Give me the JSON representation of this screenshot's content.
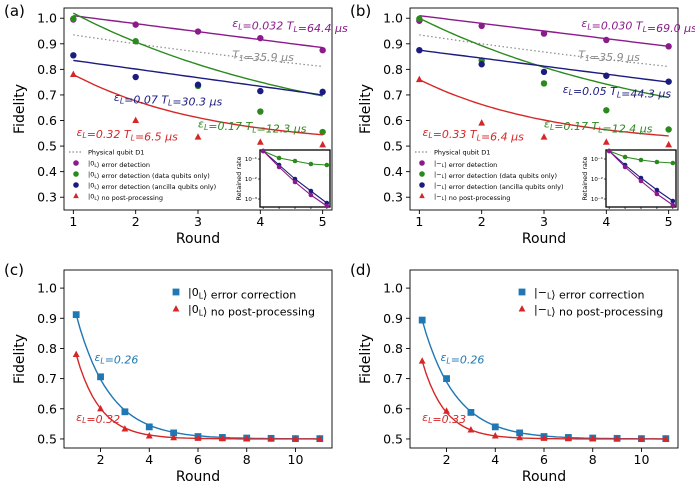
{
  "colors": {
    "purple": "#8b1a8b",
    "green": "#2a8a1e",
    "navy": "#1c1c80",
    "red": "#d62728",
    "blue": "#1f77b4",
    "gray": "#8a8a8a"
  },
  "chart_data": [
    {
      "id": "a",
      "type": "line",
      "panel_label": "(a)",
      "xlabel": "Round",
      "ylabel": "Fidelity",
      "xlim": [
        0.85,
        5.15
      ],
      "ylim": [
        0.25,
        1.04
      ],
      "xticks": [
        1,
        2,
        3,
        4,
        5
      ],
      "yticks": [
        0.3,
        0.4,
        0.5,
        0.6,
        0.7,
        0.8,
        0.9,
        1.0
      ],
      "legend": {
        "placement": "bottom-left",
        "entries": [
          {
            "label": "Physical qubit D1",
            "key": "phys"
          },
          {
            "label": "|0L⟩ error detection",
            "key": "det"
          },
          {
            "label": "|0L⟩ error detection (data qubits only)",
            "key": "data"
          },
          {
            "label": "|0L⟩ error detection (ancilla qubits only)",
            "key": "anc"
          },
          {
            "label": "|0L⟩ no post-processing",
            "key": "nop"
          }
        ]
      },
      "series": [
        {
          "key": "phys",
          "color": "gray",
          "style": "dotted",
          "marker": "none",
          "x": [
            1,
            5
          ],
          "fit_type": "exp",
          "fit": {
            "A": 0.5,
            "T": 35.9,
            "start": 0.935
          }
        },
        {
          "key": "det",
          "color": "purple",
          "marker": "circle",
          "x": [
            1,
            2,
            3,
            4,
            5
          ],
          "y": [
            0.995,
            0.975,
            0.948,
            0.922,
            0.875
          ],
          "fit_type": "linear",
          "fit": [
            1.01,
            0.885
          ]
        },
        {
          "key": "data",
          "color": "green",
          "marker": "circle",
          "x": [
            1,
            2,
            3,
            4,
            5
          ],
          "y": [
            0.998,
            0.91,
            0.735,
            0.635,
            0.555
          ],
          "fit_type": "exp",
          "fit": {
            "A": 0.5,
            "T": 12.3,
            "start": 1.02
          }
        },
        {
          "key": "anc",
          "color": "navy",
          "marker": "circle",
          "x": [
            1,
            2,
            3,
            4,
            5
          ],
          "y": [
            0.855,
            0.77,
            0.74,
            0.715,
            0.712
          ],
          "fit_type": "linear",
          "fit": [
            0.835,
            0.7
          ]
        },
        {
          "key": "nop",
          "color": "red",
          "marker": "triangle",
          "x": [
            1,
            2,
            3,
            4,
            5
          ],
          "y": [
            0.78,
            0.6,
            0.535,
            0.515,
            0.505
          ],
          "fit_type": "exp",
          "fit": {
            "A": 0.5,
            "T": 6.5,
            "start": 0.78
          }
        }
      ],
      "annotations": [
        {
          "text": "εL=0.032 TL=64.4 μs",
          "color": "purple",
          "x": 3.55,
          "y": 0.965
        },
        {
          "text": "T1=35.9 μs",
          "color": "gray",
          "x": 3.55,
          "y": 0.842
        },
        {
          "text": "εL=0.07 TL=30.3 μs",
          "color": "navy",
          "x": 1.65,
          "y": 0.676
        },
        {
          "text": "εL=0.17 TL=12.3 μs",
          "color": "green",
          "x": 3.0,
          "y": 0.572
        },
        {
          "text": "εL=0.32 TL=6.5 μs",
          "color": "red",
          "x": 1.05,
          "y": 0.54
        }
      ],
      "inset": {
        "ylabel": "Retained rate",
        "ytick_labels": [
          "10⁻¹",
          "10⁻²",
          "10⁻³"
        ],
        "ytick_values": [
          -1,
          -2,
          -3
        ],
        "ylim": [
          -3.4,
          -0.55
        ],
        "xlim": [
          0.8,
          5.2
        ],
        "series": [
          {
            "key": "data",
            "color": "green",
            "x": [
              1,
              2,
              3,
              4,
              5
            ],
            "y": [
              -0.6,
              -0.95,
              -1.1,
              -1.25,
              -1.3
            ]
          },
          {
            "key": "anc",
            "color": "navy",
            "x": [
              1,
              2,
              3,
              4,
              5
            ],
            "y": [
              -0.6,
              -1.3,
              -2.0,
              -2.6,
              -3.2
            ]
          },
          {
            "key": "det",
            "color": "purple",
            "x": [
              1,
              2,
              3,
              4,
              5
            ],
            "y": [
              -0.6,
              -1.4,
              -2.15,
              -2.8,
              -3.35
            ]
          }
        ]
      }
    },
    {
      "id": "b",
      "type": "line",
      "panel_label": "(b)",
      "xlabel": "Round",
      "ylabel": "Fidelity",
      "xlim": [
        0.85,
        5.15
      ],
      "ylim": [
        0.25,
        1.04
      ],
      "xticks": [
        1,
        2,
        3,
        4,
        5
      ],
      "yticks": [
        0.3,
        0.4,
        0.5,
        0.6,
        0.7,
        0.8,
        0.9,
        1.0
      ],
      "legend": {
        "placement": "bottom-left",
        "entries": [
          {
            "label": "Physical qubit D1",
            "key": "phys"
          },
          {
            "label": "|−L⟩ error detection",
            "key": "det"
          },
          {
            "label": "|−L⟩ error detection (data qubits only)",
            "key": "data"
          },
          {
            "label": "|−L⟩ error detection (ancilla qubits only)",
            "key": "anc"
          },
          {
            "label": "|−L⟩ no post-processing",
            "key": "nop"
          }
        ]
      },
      "series": [
        {
          "key": "phys",
          "color": "gray",
          "style": "dotted",
          "marker": "none",
          "x": [
            1,
            5
          ],
          "fit_type": "exp",
          "fit": {
            "A": 0.5,
            "T": 35.9,
            "start": 0.935
          }
        },
        {
          "key": "det",
          "color": "purple",
          "marker": "circle",
          "x": [
            1,
            2,
            3,
            4,
            5
          ],
          "y": [
            0.99,
            0.97,
            0.94,
            0.915,
            0.89
          ],
          "fit_type": "linear",
          "fit": [
            1.01,
            0.89
          ]
        },
        {
          "key": "data",
          "color": "green",
          "marker": "circle",
          "x": [
            1,
            2,
            3,
            4,
            5
          ],
          "y": [
            0.998,
            0.835,
            0.745,
            0.64,
            0.565
          ],
          "fit_type": "exp",
          "fit": {
            "A": 0.5,
            "T": 12.4,
            "start": 1.0
          }
        },
        {
          "key": "anc",
          "color": "navy",
          "marker": "circle",
          "x": [
            1,
            2,
            3,
            4,
            5
          ],
          "y": [
            0.875,
            0.82,
            0.79,
            0.775,
            0.752
          ],
          "fit_type": "linear",
          "fit": [
            0.875,
            0.75
          ]
        },
        {
          "key": "nop",
          "color": "red",
          "marker": "triangle",
          "x": [
            1,
            2,
            3,
            4,
            5
          ],
          "y": [
            0.76,
            0.59,
            0.535,
            0.515,
            0.505
          ],
          "fit_type": "exp",
          "fit": {
            "A": 0.5,
            "T": 6.4,
            "start": 0.76
          }
        }
      ],
      "annotations": [
        {
          "text": "εL=0.030 TL=69.0 μs",
          "color": "purple",
          "x": 3.6,
          "y": 0.965
        },
        {
          "text": "T1=35.9 μs",
          "color": "gray",
          "x": 3.55,
          "y": 0.842
        },
        {
          "text": "εL=0.05 TL=44.3 μs",
          "color": "navy",
          "x": 3.3,
          "y": 0.708
        },
        {
          "text": "εL=0.17 TL=12.4 μs",
          "color": "green",
          "x": 3.0,
          "y": 0.572
        },
        {
          "text": "εL=0.33 TL=6.4 μs",
          "color": "red",
          "x": 1.05,
          "y": 0.54
        }
      ],
      "inset": {
        "ylabel": "Retained rate",
        "ytick_labels": [
          "10⁻¹",
          "10⁻²",
          "10⁻³"
        ],
        "ytick_values": [
          -1,
          -2,
          -3
        ],
        "ylim": [
          -3.4,
          -0.55
        ],
        "xlim": [
          0.8,
          5.2
        ],
        "series": [
          {
            "key": "data",
            "color": "green",
            "x": [
              1,
              2,
              3,
              4,
              5
            ],
            "y": [
              -0.6,
              -0.9,
              -1.05,
              -1.15,
              -1.2
            ]
          },
          {
            "key": "anc",
            "color": "navy",
            "x": [
              1,
              2,
              3,
              4,
              5
            ],
            "y": [
              -0.6,
              -1.3,
              -1.95,
              -2.55,
              -3.1
            ]
          },
          {
            "key": "det",
            "color": "purple",
            "x": [
              1,
              2,
              3,
              4,
              5
            ],
            "y": [
              -0.6,
              -1.4,
              -2.1,
              -2.75,
              -3.3
            ]
          }
        ]
      }
    },
    {
      "id": "c",
      "type": "line",
      "panel_label": "(c)",
      "xlabel": "Round",
      "ylabel": "Fidelity",
      "xlim": [
        0.5,
        11.5
      ],
      "ylim": [
        0.47,
        1.06
      ],
      "xticks": [
        2,
        4,
        6,
        8,
        10
      ],
      "yticks": [
        0.5,
        0.6,
        0.7,
        0.8,
        0.9,
        1.0
      ],
      "legend": {
        "placement": "top-right",
        "entries": [
          {
            "label": "|0L⟩ error correction",
            "key": "corr"
          },
          {
            "label": "|0L⟩ no post-processing",
            "key": "nop"
          }
        ]
      },
      "series": [
        {
          "key": "corr",
          "color": "blue",
          "marker": "square",
          "x": [
            1,
            2,
            3,
            4,
            5,
            6,
            7,
            8,
            9,
            10,
            11
          ],
          "y": [
            0.912,
            0.706,
            0.59,
            0.54,
            0.52,
            0.508,
            0.505,
            0.503,
            0.502,
            0.501,
            0.501
          ],
          "fit_type": "exp",
          "fit": {
            "A": 0.5,
            "r": 0.26,
            "start": 0.912
          }
        },
        {
          "key": "nop",
          "color": "red",
          "marker": "triangle",
          "x": [
            1,
            2,
            3,
            4,
            5,
            6,
            7,
            8,
            9,
            10,
            11
          ],
          "y": [
            0.78,
            0.6,
            0.533,
            0.51,
            0.504,
            0.502,
            0.501,
            0.5,
            0.5,
            0.5,
            0.5
          ],
          "fit_type": "exp",
          "fit": {
            "A": 0.5,
            "r": 0.32,
            "start": 0.78
          }
        }
      ],
      "annotations": [
        {
          "text": "εL=0.26",
          "color": "blue",
          "x": 1.75,
          "y": 0.758
        },
        {
          "text": "εL=0.32",
          "color": "red",
          "x": 1.0,
          "y": 0.56
        }
      ]
    },
    {
      "id": "d",
      "type": "line",
      "panel_label": "(d)",
      "xlabel": "Round",
      "ylabel": "Fidelity",
      "xlim": [
        0.5,
        11.5
      ],
      "ylim": [
        0.47,
        1.06
      ],
      "xticks": [
        2,
        4,
        6,
        8,
        10
      ],
      "yticks": [
        0.5,
        0.6,
        0.7,
        0.8,
        0.9,
        1.0
      ],
      "legend": {
        "placement": "top-right",
        "entries": [
          {
            "label": "|−L⟩ error correction",
            "key": "corr"
          },
          {
            "label": "|−L⟩ no post-processing",
            "key": "nop"
          }
        ]
      },
      "series": [
        {
          "key": "corr",
          "color": "blue",
          "marker": "square",
          "x": [
            1,
            2,
            3,
            4,
            5,
            6,
            7,
            8,
            9,
            10,
            11
          ],
          "y": [
            0.894,
            0.7,
            0.588,
            0.54,
            0.52,
            0.508,
            0.505,
            0.503,
            0.502,
            0.501,
            0.501
          ],
          "fit_type": "exp",
          "fit": {
            "A": 0.5,
            "r": 0.26,
            "start": 0.894
          }
        },
        {
          "key": "nop",
          "color": "red",
          "marker": "triangle",
          "x": [
            1,
            2,
            3,
            4,
            5,
            6,
            7,
            8,
            9,
            10,
            11
          ],
          "y": [
            0.758,
            0.592,
            0.53,
            0.51,
            0.504,
            0.502,
            0.501,
            0.5,
            0.5,
            0.5,
            0.5
          ],
          "fit_type": "exp",
          "fit": {
            "A": 0.5,
            "r": 0.33,
            "start": 0.758
          }
        }
      ],
      "annotations": [
        {
          "text": "εL=0.26",
          "color": "blue",
          "x": 1.75,
          "y": 0.758
        },
        {
          "text": "εL=0.33",
          "color": "red",
          "x": 1.0,
          "y": 0.56
        }
      ]
    }
  ]
}
